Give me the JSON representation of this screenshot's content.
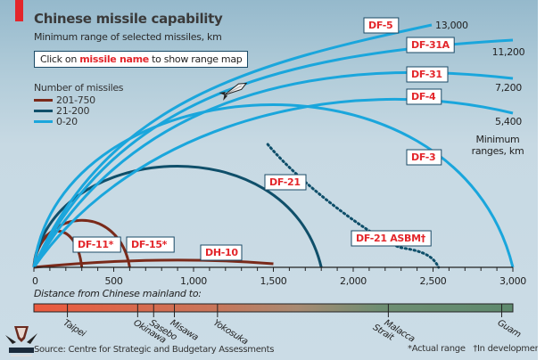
{
  "header": {
    "title": "Chinese missile capability",
    "subtitle": "Minimum range of selected missiles, km",
    "hint_prefix": "Click on ",
    "hint_highlight": "missile name",
    "hint_suffix": " to show range map"
  },
  "legend": {
    "title": "Number of missiles",
    "items": [
      {
        "label": "201-750",
        "color": "#7a2a1a"
      },
      {
        "label": "21-200",
        "color": "#0f4f6a"
      },
      {
        "label": "0-20",
        "color": "#1aa6dc"
      }
    ]
  },
  "colors": {
    "accent": "#e3262b",
    "brown": "#7a2a1a",
    "dark_teal": "#0f4f6a",
    "light_blue": "#1aa6dc"
  },
  "chart_data": {
    "type": "line",
    "title": "Chinese missile capability",
    "subtitle": "Minimum range of selected missiles, km",
    "xlabel": "Distance from Chinese mainland to:",
    "ylabel": "",
    "xlim": [
      0,
      3000
    ],
    "xticks": [
      0,
      500,
      1000,
      1500,
      2000,
      2500,
      3000
    ],
    "xtick_labels": [
      "0",
      "500",
      "1,000",
      "1,500",
      "2,000",
      "2,500",
      "3,000"
    ],
    "grid": false,
    "legend_position": "top-left",
    "series": [
      {
        "name": "DF-11*",
        "range_km": 300,
        "group": "201-750",
        "status": "actual range"
      },
      {
        "name": "DF-15*",
        "range_km": 600,
        "group": "201-750",
        "status": "actual range"
      },
      {
        "name": "DH-10",
        "range_km": 1500,
        "group": "201-750",
        "trajectory": "flat"
      },
      {
        "name": "DF-21",
        "range_km": 1800,
        "group": "21-200"
      },
      {
        "name": "DF-21 ASBM†",
        "range_km": 2500,
        "group": "21-200",
        "status": "in development",
        "dotted": true
      },
      {
        "name": "DF-3",
        "range_km": 3000,
        "group": "0-20"
      },
      {
        "name": "DF-4",
        "range_km": 5400,
        "group": "0-20",
        "range_label": "5,400"
      },
      {
        "name": "DF-31",
        "range_km": 7200,
        "group": "0-20",
        "range_label": "7,200"
      },
      {
        "name": "DF-31A",
        "range_km": 11200,
        "group": "0-20",
        "range_label": "11,200"
      },
      {
        "name": "DF-5",
        "range_km": 13000,
        "group": "0-20",
        "range_label": "13,000"
      }
    ],
    "range_axis_note": "Minimum ranges, km",
    "destinations": [
      {
        "name": "Taipei",
        "km": 210
      },
      {
        "name": "Okinawa",
        "km": 650
      },
      {
        "name": "Sasebo",
        "km": 750
      },
      {
        "name": "Misawa",
        "km": 880
      },
      {
        "name": "Yokosuka",
        "km": 1150
      },
      {
        "name": "Malacca Strait",
        "km": 2220
      },
      {
        "name": "Guam",
        "km": 2930
      }
    ],
    "footnotes": [
      "*Actual range",
      "†In development"
    ]
  },
  "footer": {
    "source": "Source: Centre for Strategic and Budgetary Assessments",
    "footnote_actual": "*Actual range",
    "footnote_dev": "†In development"
  }
}
